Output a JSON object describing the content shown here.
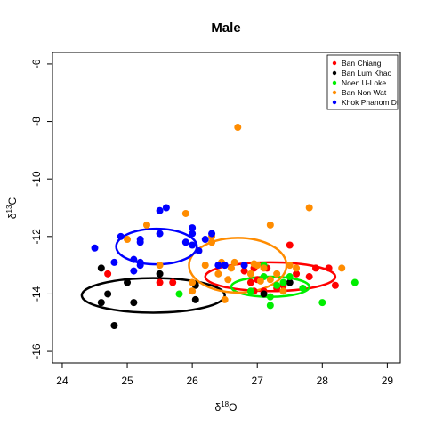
{
  "chart_data": {
    "type": "scatter",
    "title": "Male",
    "xlabel": {
      "prefix": "δ",
      "sup": "18",
      "suffix": "O"
    },
    "ylabel": {
      "prefix": "δ",
      "sup": "13",
      "suffix": "C"
    },
    "xlim": [
      23.85,
      29.2
    ],
    "ylim": [
      -16.4,
      -5.6
    ],
    "xticks": [
      24,
      25,
      26,
      27,
      28,
      29
    ],
    "yticks": [
      -16,
      -14,
      -12,
      -10,
      -8,
      -6
    ],
    "legend_position": "top-right",
    "series": [
      {
        "name": "Ban Chiang",
        "color": "#ff0000",
        "points": [
          [
            24.7,
            -13.3
          ],
          [
            25.5,
            -13.6
          ],
          [
            25.7,
            -13.6
          ],
          [
            26.8,
            -13.2
          ],
          [
            26.9,
            -13.6
          ],
          [
            26.95,
            -13.1
          ],
          [
            27.0,
            -13.5
          ],
          [
            27.1,
            -13.9
          ],
          [
            27.3,
            -13.8
          ],
          [
            27.4,
            -13.7
          ],
          [
            27.5,
            -12.3
          ],
          [
            27.6,
            -13.3
          ],
          [
            27.8,
            -13.4
          ],
          [
            27.9,
            -13.1
          ],
          [
            28.1,
            -13.1
          ],
          [
            28.2,
            -13.7
          ],
          [
            26.95,
            -13.9
          ],
          [
            27.15,
            -13.1
          ]
        ]
      },
      {
        "name": "Ban Lum Khao",
        "color": "#000000",
        "points": [
          [
            24.6,
            -13.1
          ],
          [
            24.6,
            -14.3
          ],
          [
            24.7,
            -14.0
          ],
          [
            24.8,
            -15.1
          ],
          [
            25.0,
            -13.6
          ],
          [
            25.1,
            -14.3
          ],
          [
            25.5,
            -13.3
          ],
          [
            26.05,
            -14.2
          ],
          [
            26.05,
            -13.7
          ],
          [
            27.1,
            -14.0
          ],
          [
            27.5,
            -13.6
          ]
        ]
      },
      {
        "name": "Noen U-Loke",
        "color": "#00ee00",
        "points": [
          [
            25.8,
            -14.0
          ],
          [
            26.9,
            -13.9
          ],
          [
            27.1,
            -13.4
          ],
          [
            27.2,
            -14.4
          ],
          [
            27.2,
            -14.1
          ],
          [
            27.3,
            -13.7
          ],
          [
            27.4,
            -13.6
          ],
          [
            27.5,
            -13.4
          ],
          [
            27.7,
            -13.8
          ],
          [
            28.0,
            -14.3
          ],
          [
            28.5,
            -13.6
          ],
          [
            27.1,
            -13.0
          ]
        ]
      },
      {
        "name": "Ban Non Wat",
        "color": "#ff8c00",
        "points": [
          [
            25.0,
            -12.1
          ],
          [
            25.3,
            -11.6
          ],
          [
            25.5,
            -13.0
          ],
          [
            25.9,
            -11.2
          ],
          [
            26.0,
            -13.9
          ],
          [
            26.0,
            -13.6
          ],
          [
            26.1,
            -12.5
          ],
          [
            26.2,
            -13.0
          ],
          [
            26.3,
            -12.2
          ],
          [
            26.3,
            -12.0
          ],
          [
            26.4,
            -13.3
          ],
          [
            26.5,
            -14.2
          ],
          [
            26.55,
            -13.5
          ],
          [
            26.6,
            -13.1
          ],
          [
            26.65,
            -12.9
          ],
          [
            26.7,
            -8.2
          ],
          [
            26.8,
            -13.0
          ],
          [
            26.9,
            -13.3
          ],
          [
            27.0,
            -13.0
          ],
          [
            27.1,
            -13.1
          ],
          [
            27.2,
            -11.6
          ],
          [
            27.2,
            -13.5
          ],
          [
            27.3,
            -13.3
          ],
          [
            27.4,
            -13.9
          ],
          [
            27.5,
            -13.0
          ],
          [
            27.6,
            -13.1
          ],
          [
            27.8,
            -11.0
          ],
          [
            28.3,
            -13.1
          ],
          [
            26.95,
            -12.95
          ],
          [
            27.05,
            -13.55
          ],
          [
            26.45,
            -12.9
          ]
        ]
      },
      {
        "name": "Khok Phanom Di",
        "color": "#0000ff",
        "points": [
          [
            24.5,
            -12.4
          ],
          [
            24.8,
            -12.9
          ],
          [
            24.9,
            -12.0
          ],
          [
            25.1,
            -13.2
          ],
          [
            25.1,
            -12.8
          ],
          [
            25.2,
            -13.0
          ],
          [
            25.2,
            -12.9
          ],
          [
            25.2,
            -12.2
          ],
          [
            25.2,
            -12.1
          ],
          [
            25.5,
            -11.1
          ],
          [
            25.5,
            -11.9
          ],
          [
            25.6,
            -11.0
          ],
          [
            25.9,
            -12.2
          ],
          [
            26.0,
            -11.9
          ],
          [
            26.0,
            -12.3
          ],
          [
            26.0,
            -11.7
          ],
          [
            26.1,
            -12.5
          ],
          [
            26.3,
            -11.9
          ],
          [
            26.4,
            -13.0
          ],
          [
            26.5,
            -13.0
          ],
          [
            26.8,
            -13.0
          ],
          [
            26.2,
            -12.1
          ]
        ]
      }
    ],
    "ellipses": [
      {
        "series": "Ban Chiang",
        "color": "#ff0000",
        "cx": 27.2,
        "cy": -13.4,
        "rx": 1.0,
        "ry": 0.5
      },
      {
        "series": "Ban Lum Khao",
        "color": "#000000",
        "cx": 25.4,
        "cy": -14.05,
        "rx": 1.1,
        "ry": 0.6
      },
      {
        "series": "Noen U-Loke",
        "color": "#00ee00",
        "cx": 27.2,
        "cy": -13.75,
        "rx": 0.6,
        "ry": 0.35
      },
      {
        "series": "Ban Non Wat",
        "color": "#ff8c00",
        "cx": 26.7,
        "cy": -13.0,
        "rx": 0.75,
        "ry": 0.95
      },
      {
        "series": "Khok Phanom Di",
        "color": "#0000ff",
        "cx": 25.45,
        "cy": -12.35,
        "rx": 0.62,
        "ry": 0.62
      }
    ]
  }
}
